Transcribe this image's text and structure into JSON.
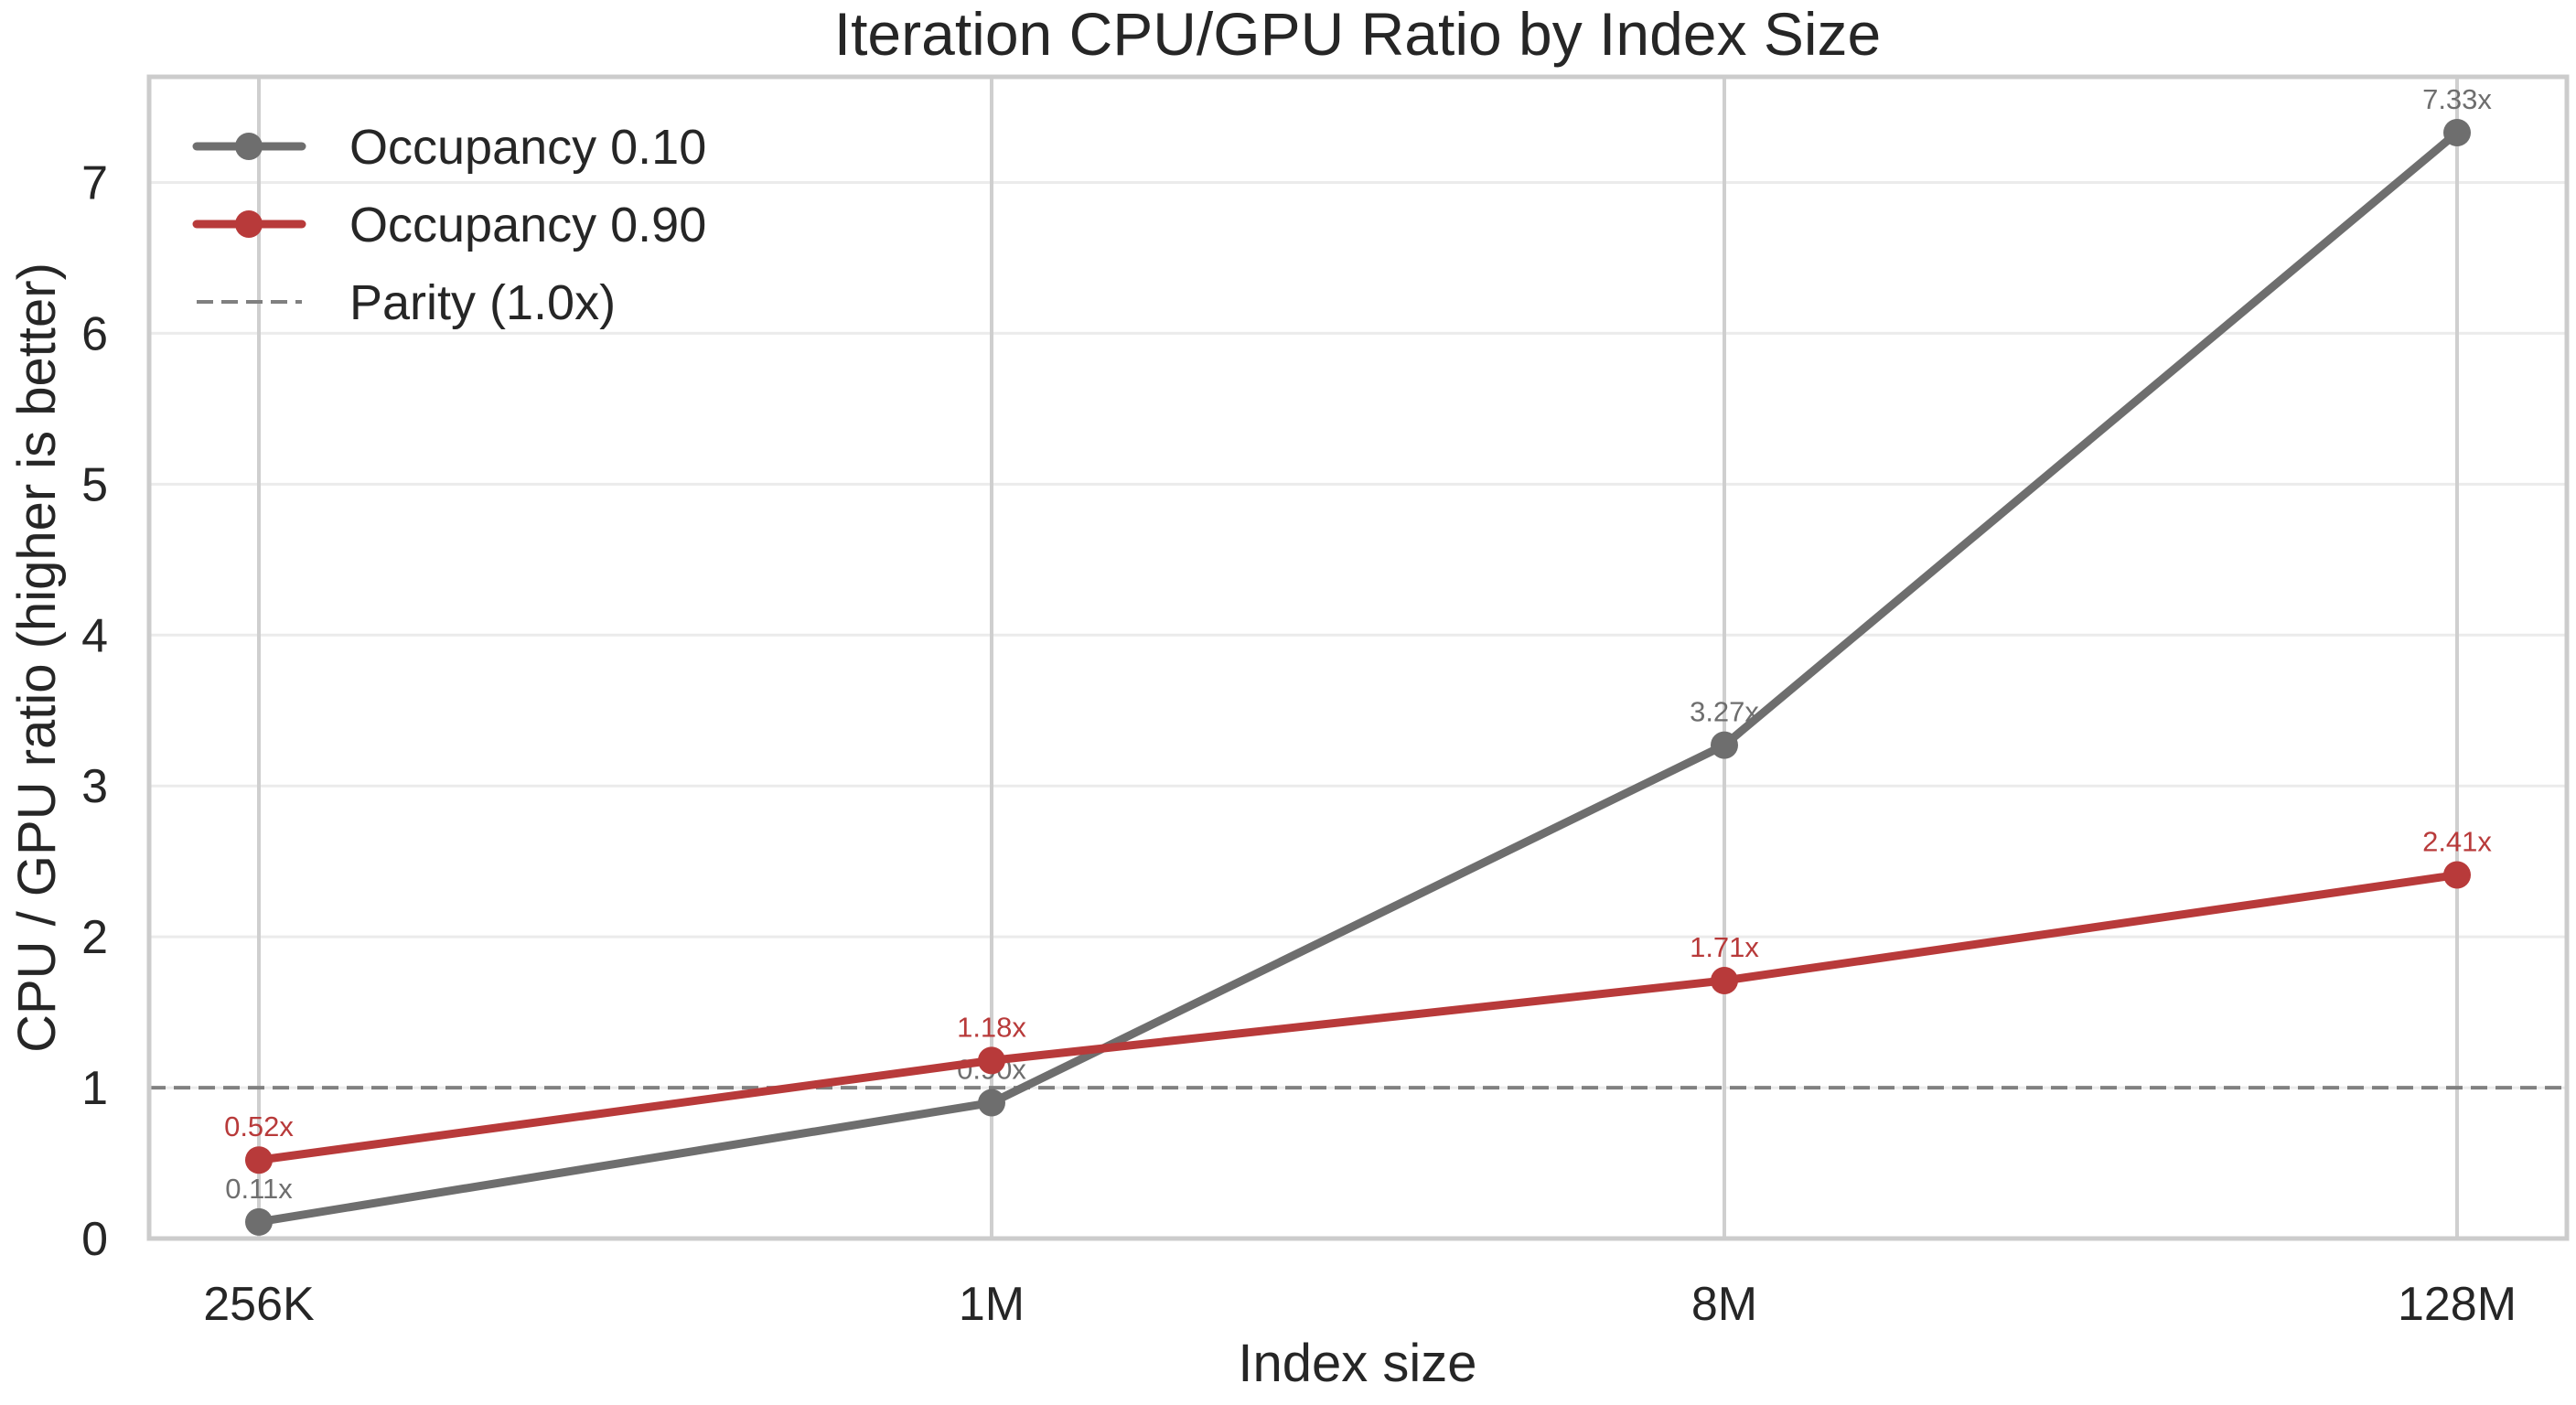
{
  "chart_data": {
    "type": "line",
    "title": "Iteration CPU/GPU Ratio by Index Size",
    "xlabel": "Index size",
    "ylabel": "CPU / GPU ratio (higher is better)",
    "categories": [
      "256K",
      "1M",
      "8M",
      "128M"
    ],
    "ylim": [
      0,
      7.7
    ],
    "yticks": [
      0,
      1,
      2,
      3,
      4,
      5,
      6,
      7
    ],
    "grid": true,
    "legend_position": "top-left",
    "series": [
      {
        "name": "Occupancy 0.10",
        "values": [
          0.11,
          0.9,
          3.27,
          7.33
        ],
        "labels": [
          "0.11x",
          "0.90x",
          "3.27x",
          "7.33x"
        ],
        "color": "#6e6e6e"
      },
      {
        "name": "Occupancy 0.90",
        "values": [
          0.52,
          1.18,
          1.71,
          2.41
        ],
        "labels": [
          "0.52x",
          "1.18x",
          "1.71x",
          "2.41x"
        ],
        "color": "#b83a3a"
      }
    ],
    "reference_line": {
      "name": "Parity (1.0x)",
      "value": 1.0,
      "color": "#808080",
      "style": "dashed"
    }
  }
}
